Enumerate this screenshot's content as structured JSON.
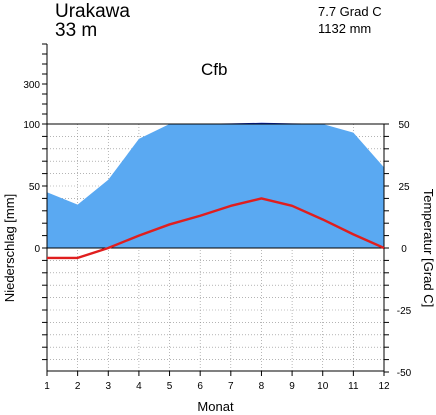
{
  "station": {
    "name": "Urakawa",
    "elevation": "33 m",
    "mean_temperature": "7.7 Grad C",
    "annual_precipitation": "1132 mm",
    "climate_class": "Cfb"
  },
  "colors": {
    "precipitation_fill": "#5aa9f2",
    "precipitation_high_fill": "#0a2bd6",
    "temperature_line": "#e01e1e",
    "grid": "#888888"
  },
  "chart_data": {
    "type": "line",
    "title": "",
    "x": [
      1,
      2,
      3,
      4,
      5,
      6,
      7,
      8,
      9,
      10,
      11,
      12
    ],
    "xlabel": "Monat",
    "x_ticks": [
      "1",
      "2",
      "3",
      "4",
      "5",
      "6",
      "7",
      "8",
      "9",
      "10",
      "11",
      "12"
    ],
    "series": [
      {
        "name": "",
        "kind": "area",
        "axis": "left",
        "values": [
          45,
          35,
          55,
          88,
          100,
          101,
          103,
          106,
          103,
          101,
          93,
          65
        ]
      },
      {
        "name": "",
        "kind": "line",
        "axis": "right",
        "values": [
          -4,
          -4,
          0,
          5,
          9.5,
          13,
          17,
          20,
          17,
          11.5,
          5.5,
          0
        ]
      }
    ],
    "y_left": {
      "label": "Niederschlag [mm]",
      "ticks": [
        "300",
        "100",
        "50",
        "0"
      ],
      "linear_range": [
        -100,
        100
      ],
      "compressed_range": [
        100,
        500
      ]
    },
    "y_right": {
      "label": "Temperatur [Grad C]",
      "ticks": [
        "50",
        "25",
        "0",
        "-25",
        "-50"
      ],
      "range": [
        -50,
        50
      ]
    },
    "grid": true
  }
}
